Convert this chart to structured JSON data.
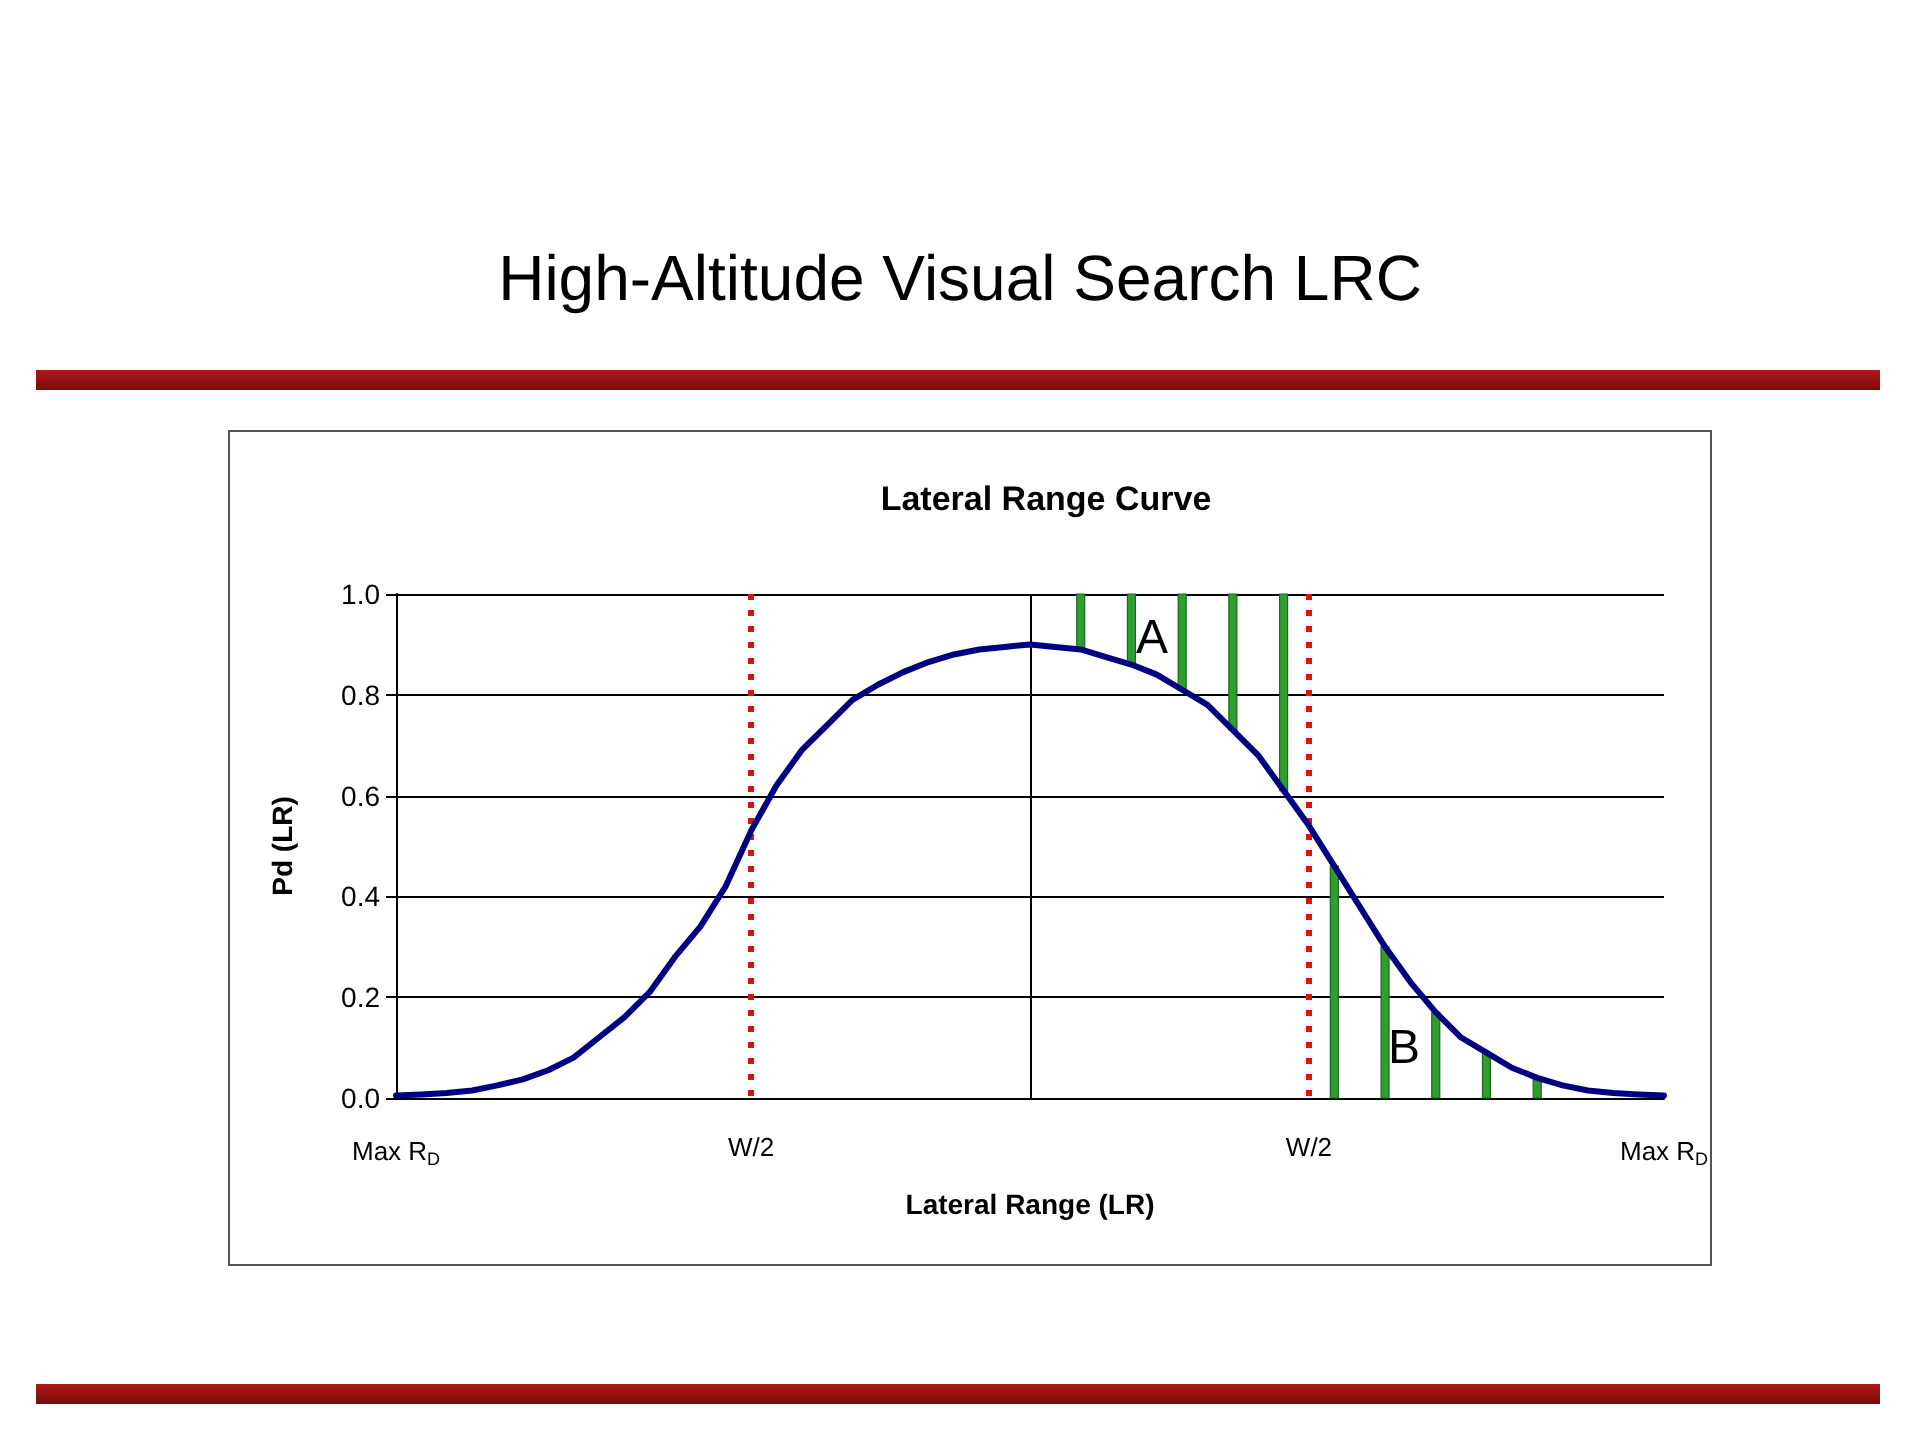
{
  "chart_data": {
    "type": "line",
    "title": "High-Altitude Visual Search LRC",
    "subtitle": "Lateral Range Curve",
    "xlabel": "Lateral Range (LR)",
    "ylabel": "Pd (LR)",
    "categories": [
      "Max R$_{D}$",
      null,
      null,
      null,
      null,
      null,
      null,
      null,
      null,
      null,
      null,
      null,
      null,
      null,
      "W/2",
      null,
      null,
      null,
      null,
      null,
      null,
      null,
      null,
      null,
      null,
      null,
      null,
      null,
      null,
      null,
      null,
      null,
      null,
      null,
      null,
      null,
      "W/2",
      null,
      null,
      null,
      null,
      null,
      null,
      null,
      null,
      null,
      null,
      null,
      null,
      null,
      "Max R$_{D}$"
    ],
    "ylim": [
      0,
      1
    ],
    "yticks": [
      {
        "value": 0,
        "label": "0.0"
      },
      {
        "value": 0.2,
        "label": "0.2"
      },
      {
        "value": 0.4,
        "label": "0.4"
      },
      {
        "value": 0.6,
        "label": "0.6"
      },
      {
        "value": 0.8,
        "label": "0.8"
      },
      {
        "value": 1,
        "label": "1.0"
      }
    ],
    "grid": true,
    "marker": "none",
    "line_style": "solid",
    "series": [
      {
        "color": "#000080",
        "values": [
          0.005,
          0.007,
          0.01,
          0.015,
          0.025,
          0.037,
          0.055,
          0.08,
          0.12,
          0.16,
          0.21,
          0.28,
          0.34,
          0.42,
          0.53,
          0.62,
          0.69,
          0.74,
          0.79,
          0.82,
          0.845,
          0.865,
          0.88,
          0.89,
          0.895,
          0.9,
          0.895,
          0.89,
          0.875,
          0.86,
          0.84,
          0.81,
          0.78,
          0.73,
          0.68,
          0.61,
          0.54,
          0.46,
          0.38,
          0.3,
          0.23,
          0.17,
          0.12,
          0.09,
          0.06,
          0.04,
          0.025,
          0.015,
          0.01,
          0.007,
          0.005
        ]
      },
      {
        "type": "bar",
        "color": "#2e9e2e",
        "base": [
          null,
          null,
          null,
          null,
          null,
          null,
          null,
          null,
          null,
          null,
          null,
          null,
          null,
          null,
          null,
          null,
          null,
          null,
          null,
          null,
          null,
          null,
          null,
          null,
          null,
          null,
          null,
          0.89,
          null,
          0.86,
          null,
          0.81,
          null,
          0.73,
          null,
          0.61,
          null,
          null,
          null,
          null,
          null,
          null,
          null,
          null,
          null,
          null,
          null,
          null,
          null,
          null,
          null
        ],
        "values": [
          null,
          null,
          null,
          null,
          null,
          null,
          null,
          null,
          null,
          null,
          null,
          null,
          null,
          null,
          null,
          null,
          null,
          null,
          null,
          null,
          null,
          null,
          null,
          null,
          null,
          null,
          null,
          0.11,
          null,
          0.14,
          null,
          0.19,
          null,
          0.27,
          null,
          0.39,
          null,
          null,
          null,
          null,
          null,
          null,
          null,
          null,
          null,
          null,
          null,
          null,
          null,
          null,
          null
        ]
      },
      {
        "type": "bar",
        "color": "#2e9e2e",
        "values": [
          null,
          null,
          null,
          null,
          null,
          null,
          null,
          null,
          null,
          null,
          null,
          null,
          null,
          null,
          null,
          null,
          null,
          null,
          null,
          null,
          null,
          null,
          null,
          null,
          null,
          null,
          null,
          null,
          null,
          null,
          null,
          null,
          null,
          null,
          null,
          null,
          null,
          0.46,
          null,
          0.3,
          null,
          0.17,
          null,
          0.09,
          null,
          0.04,
          null,
          null,
          null,
          null,
          null
        ]
      }
    ],
    "annotations": [
      "A",
      "B"
    ]
  }
}
